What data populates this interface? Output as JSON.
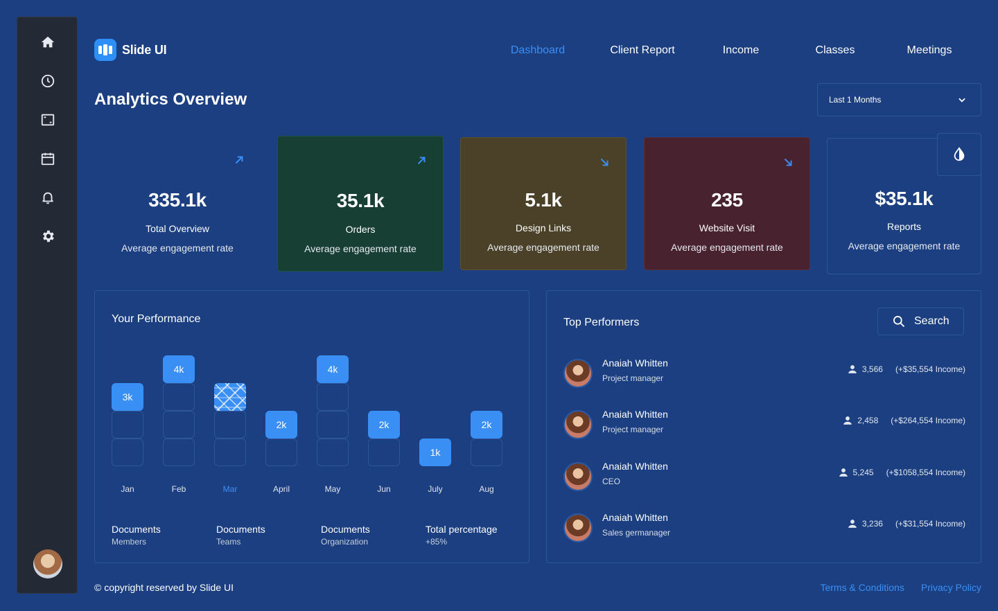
{
  "brand": {
    "name": "Slide UI",
    "accent": "#3a8ff5"
  },
  "sidebar": {
    "items": [
      {
        "icon": "home-icon"
      },
      {
        "icon": "clock-icon"
      },
      {
        "icon": "frame-icon"
      },
      {
        "icon": "calendar-icon"
      },
      {
        "icon": "bell-icon"
      },
      {
        "icon": "gear-icon"
      }
    ]
  },
  "nav": {
    "items": [
      "Dashboard",
      "Client Report",
      "Income",
      "Classes",
      "Meetings"
    ],
    "active": "Dashboard"
  },
  "page": {
    "title": "Analytics Overview"
  },
  "range_select": {
    "value": "Last 1 Months"
  },
  "stats": [
    {
      "value": "335.1k",
      "label": "Total Overview",
      "sub": "Average engagement rate",
      "trend": "up"
    },
    {
      "value": "35.1k",
      "label": "Orders",
      "sub": "Average engagement rate",
      "trend": "up"
    },
    {
      "value": "5.1k",
      "label": "Design Links",
      "sub": "Average engagement rate",
      "trend": "down"
    },
    {
      "value": "235",
      "label": "Website Visit",
      "sub": "Average engagement rate",
      "trend": "down"
    },
    {
      "value": "$35.1k",
      "label": "Reports",
      "sub": "Average engagement rate"
    }
  ],
  "performance": {
    "title": "Your Performance",
    "footer": [
      {
        "title": "Documents",
        "sub": "Members"
      },
      {
        "title": "Documents",
        "sub": "Teams"
      },
      {
        "title": "Documents",
        "sub": "Organization"
      },
      {
        "title": "Total percentage",
        "sub": "+85%"
      }
    ]
  },
  "chart_data": {
    "type": "bar",
    "title": "Your Performance",
    "categories": [
      "Jan",
      "Feb",
      "Mar",
      "April",
      "May",
      "Jun",
      "July",
      "Aug"
    ],
    "values": [
      3,
      4,
      3,
      2,
      4,
      2,
      1,
      2
    ],
    "labels": [
      "3k",
      "4k",
      "",
      "2k",
      "4k",
      "2k",
      "1k",
      "2k"
    ],
    "unit": "k",
    "highlighted": "Mar",
    "ylim": [
      0,
      4
    ]
  },
  "top_performers": {
    "title": "Top Performers",
    "search_label": "Search",
    "rows": [
      {
        "name": "Anaiah Whitten",
        "role": "Project manager",
        "count": "3,566",
        "income": "(+$35,554 Income)"
      },
      {
        "name": "Anaiah Whitten",
        "role": "Project manager",
        "count": "2,458",
        "income": "(+$264,554 Income)"
      },
      {
        "name": "Anaiah Whitten",
        "role": "CEO",
        "count": "5,245",
        "income": "(+$1058,554 Income)"
      },
      {
        "name": "Anaiah Whitten",
        "role": "Sales germanager",
        "count": "3,236",
        "income": "(+$31,554 Income)"
      }
    ]
  },
  "footer": {
    "copyright": "© copyright reserved by Slide UI",
    "links": [
      "Terms & Conditions",
      "Privacy Policy"
    ]
  }
}
